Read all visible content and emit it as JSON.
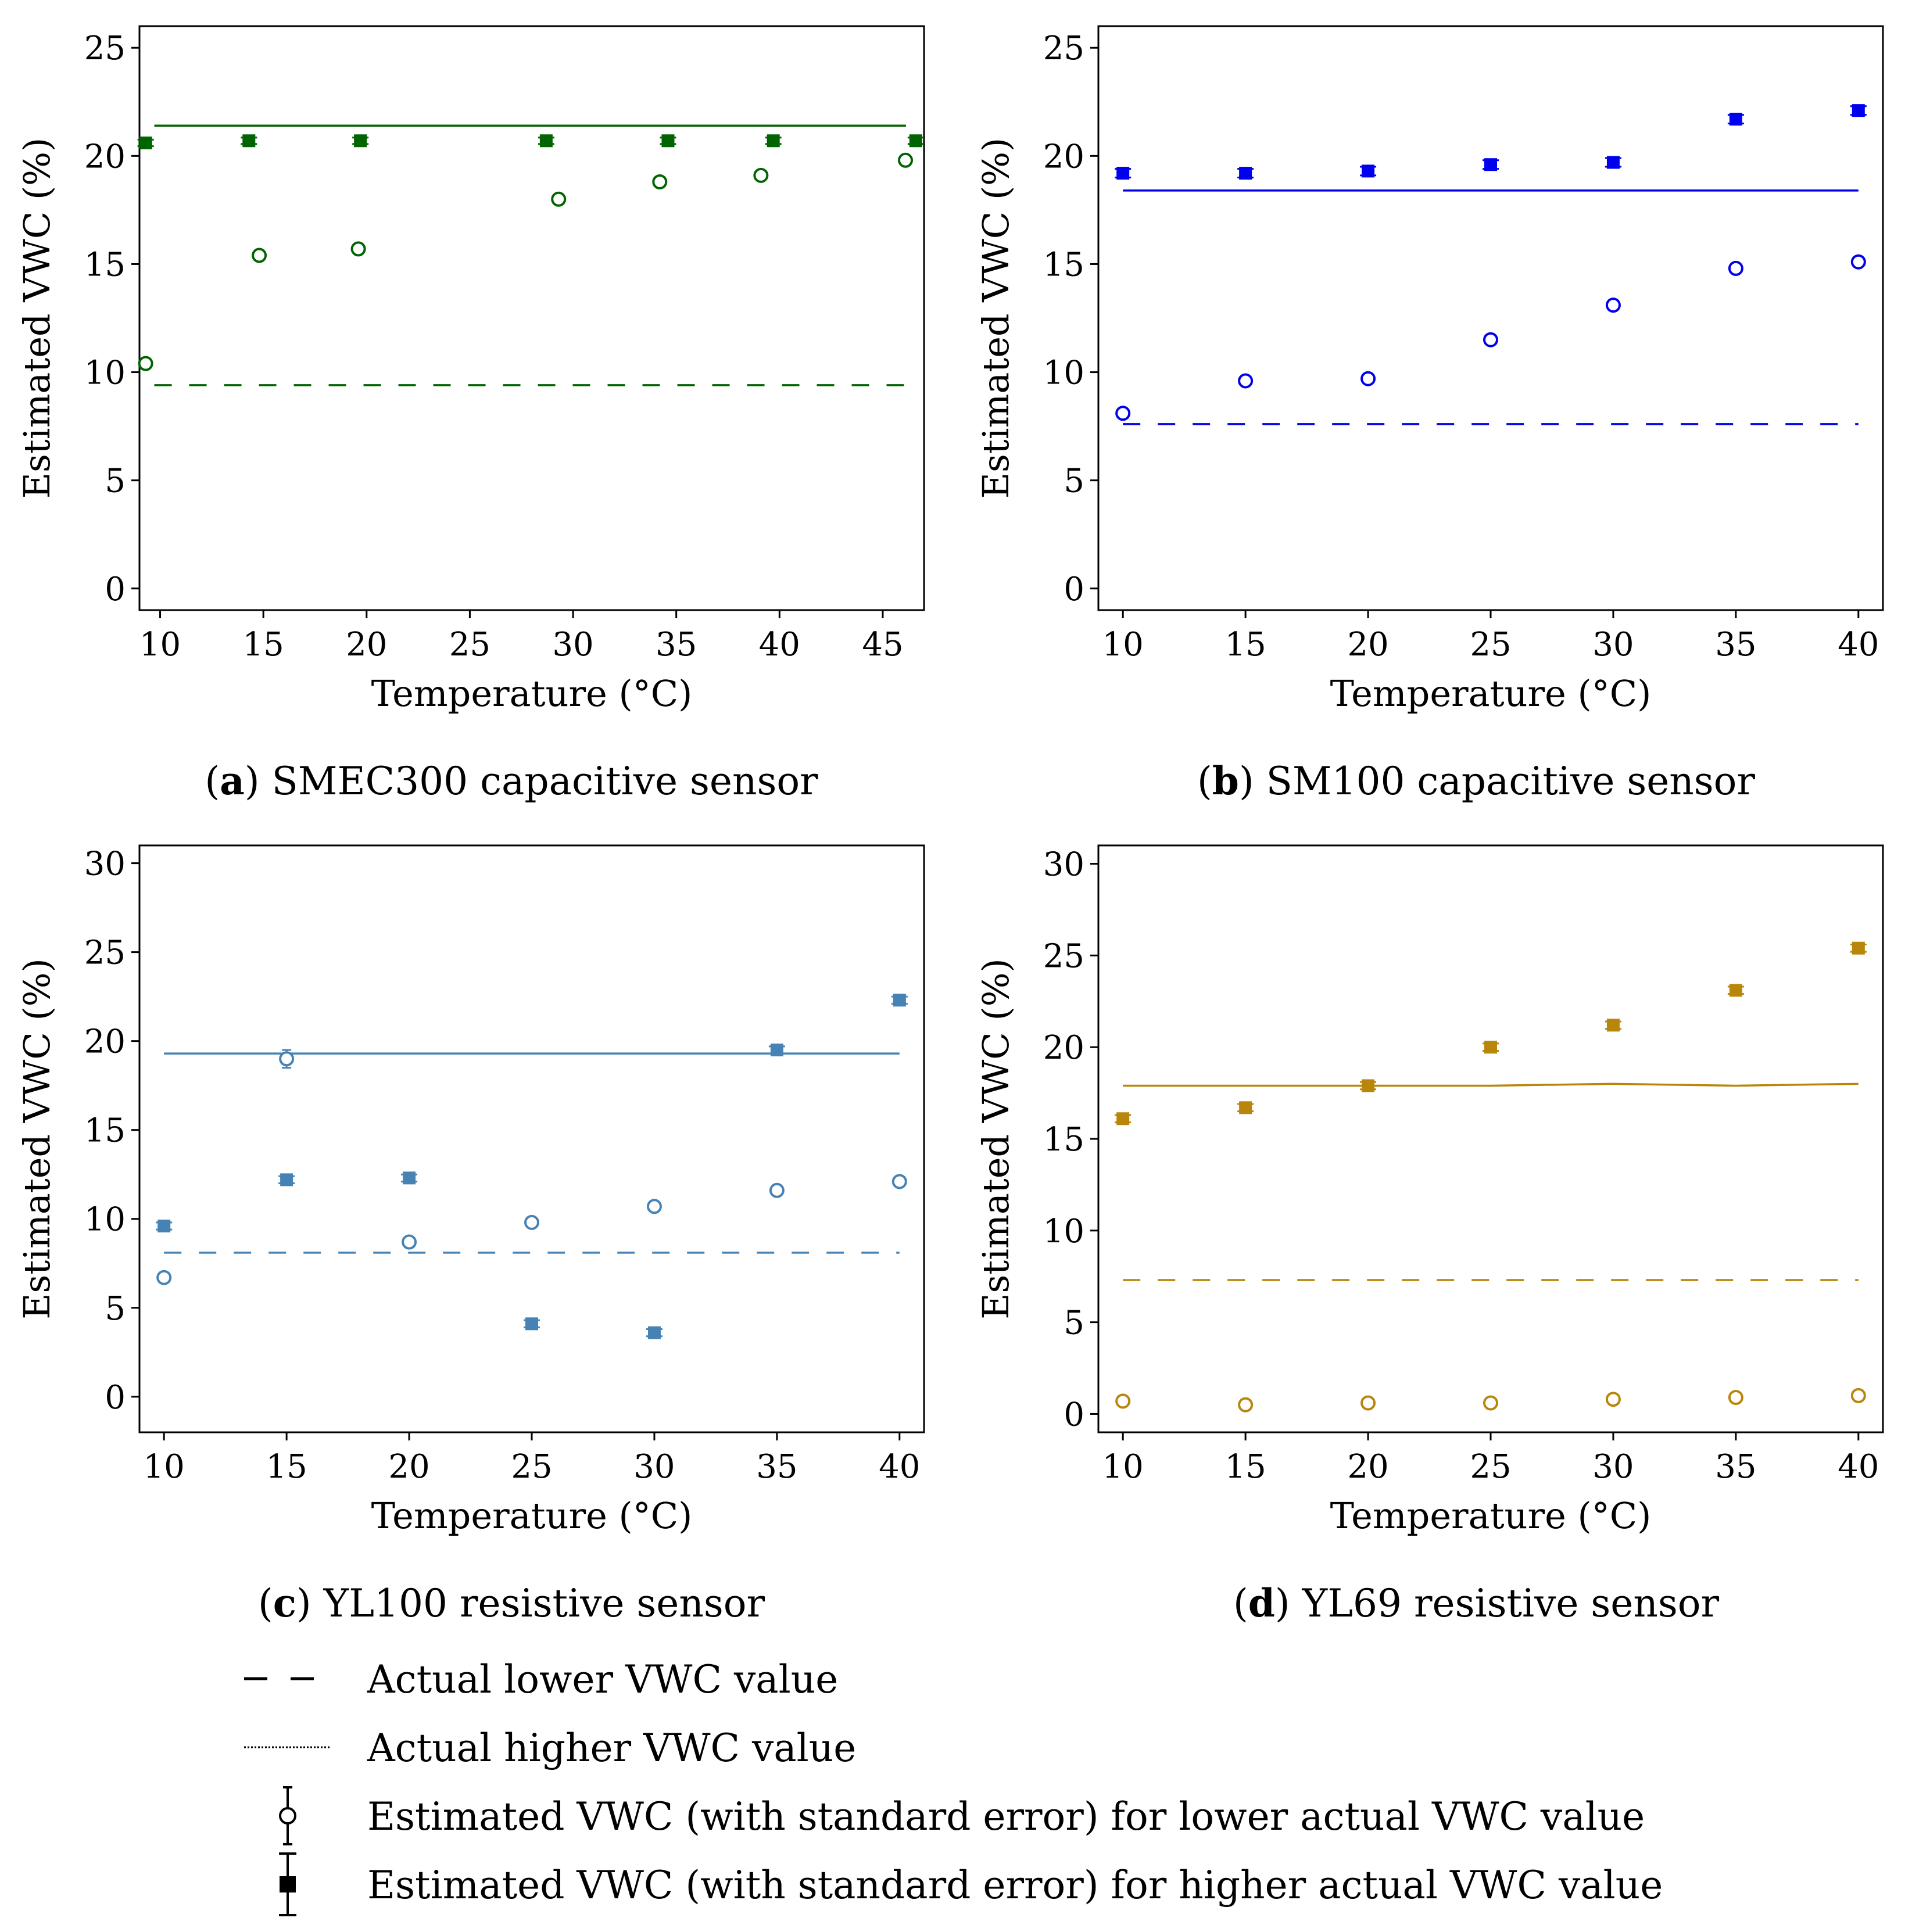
{
  "chart_data": [
    {
      "type": "scatter",
      "id": "a",
      "caption_letter": "a",
      "caption_text": "SMEC300 capacitive sensor",
      "color": "#006400",
      "xlabel": "Temperature (°C)",
      "ylabel": "Estimated VWC (%)",
      "xlim": [
        9,
        47
      ],
      "ylim": [
        -1,
        26
      ],
      "xticks": [
        10,
        15,
        20,
        25,
        30,
        35,
        40,
        45
      ],
      "yticks": [
        0,
        5,
        10,
        15,
        20,
        25
      ],
      "actual_lower": 9.4,
      "actual_higher": 21.4,
      "lower_series": {
        "name": "Estimated VWC for lower actual VWC value",
        "x": [
          9.3,
          14.8,
          19.6,
          29.3,
          34.2,
          39.1,
          46.1
        ],
        "y": [
          10.4,
          15.4,
          15.7,
          18.0,
          18.8,
          19.1,
          19.8
        ],
        "err": [
          0.1,
          0.1,
          0.2,
          0.2,
          0.15,
          0.1,
          0.1
        ]
      },
      "higher_series": {
        "name": "Estimated VWC for higher actual VWC value",
        "x": [
          9.3,
          14.3,
          19.7,
          28.7,
          34.6,
          39.7,
          46.6
        ],
        "y": [
          20.6,
          20.7,
          20.7,
          20.7,
          20.7,
          20.7,
          20.7
        ],
        "err": [
          0.15,
          0.15,
          0.15,
          0.15,
          0.15,
          0.15,
          0.15
        ]
      }
    },
    {
      "type": "scatter",
      "id": "b",
      "caption_letter": "b",
      "caption_text": "SM100 capacitive sensor",
      "color": "#0000ee",
      "xlabel": "Temperature (°C)",
      "ylabel": "Estimated VWC (%)",
      "xlim": [
        9,
        41
      ],
      "ylim": [
        -1,
        26
      ],
      "xticks": [
        10,
        15,
        20,
        25,
        30,
        35,
        40
      ],
      "yticks": [
        0,
        5,
        10,
        15,
        20,
        25
      ],
      "actual_lower": 7.6,
      "actual_higher": 18.4,
      "lower_series": {
        "name": "Estimated VWC for lower actual VWC value",
        "x": [
          10,
          15,
          20,
          25,
          30,
          35,
          40
        ],
        "y": [
          8.1,
          9.6,
          9.7,
          11.5,
          13.1,
          14.8,
          15.1
        ],
        "err": [
          0.1,
          0.1,
          0.2,
          0.2,
          0.15,
          0.1,
          0.2
        ]
      },
      "higher_series": {
        "name": "Estimated VWC for higher actual VWC value",
        "x": [
          10,
          15,
          20,
          25,
          30,
          35,
          40
        ],
        "y": [
          19.2,
          19.2,
          19.3,
          19.6,
          19.7,
          21.7,
          22.1
        ],
        "err": [
          0.2,
          0.2,
          0.2,
          0.2,
          0.2,
          0.2,
          0.2
        ]
      }
    },
    {
      "type": "scatter",
      "id": "c",
      "caption_letter": "c",
      "caption_text": "YL100 resistive sensor",
      "color": "#4682b4",
      "xlabel": "Temperature (°C)",
      "ylabel": "Estimated VWC (%)",
      "xlim": [
        9,
        41
      ],
      "ylim": [
        -2,
        31
      ],
      "xticks": [
        10,
        15,
        20,
        25,
        30,
        35,
        40
      ],
      "yticks": [
        0,
        5,
        10,
        15,
        20,
        25,
        30
      ],
      "actual_lower": 8.1,
      "actual_higher": 19.3,
      "lower_series": {
        "name": "Estimated VWC for lower actual VWC value",
        "x": [
          10,
          15,
          20,
          25,
          30,
          35,
          40
        ],
        "y": [
          6.7,
          19.0,
          8.7,
          9.8,
          10.7,
          11.6,
          12.1
        ],
        "err": [
          0.15,
          0.5,
          0.15,
          0.15,
          0.15,
          0.15,
          0.15
        ]
      },
      "higher_series": {
        "name": "Estimated VWC for higher actual VWC value",
        "x": [
          10,
          15,
          20,
          25,
          30,
          35,
          40
        ],
        "y": [
          9.6,
          12.2,
          12.3,
          4.1,
          3.6,
          19.5,
          22.3
        ],
        "err": [
          0.2,
          0.2,
          0.2,
          0.2,
          0.2,
          0.2,
          0.2
        ]
      }
    },
    {
      "type": "scatter",
      "id": "d",
      "caption_letter": "d",
      "caption_text": "YL69 resistive sensor",
      "color": "#b8860b",
      "xlabel": "Temperature (°C)",
      "ylabel": "Estimated VWC (%)",
      "xlim": [
        9,
        41
      ],
      "ylim": [
        -1,
        31
      ],
      "xticks": [
        10,
        15,
        20,
        25,
        30,
        35,
        40
      ],
      "yticks": [
        0,
        5,
        10,
        15,
        20,
        25,
        30
      ],
      "actual_lower": 7.3,
      "actual_higher": 17.9,
      "actual_higher_by_x": [
        [
          10,
          17.9
        ],
        [
          20,
          17.9
        ],
        [
          25,
          17.9
        ],
        [
          30,
          18.0
        ],
        [
          35,
          17.9
        ],
        [
          40,
          18.0
        ]
      ],
      "lower_series": {
        "name": "Estimated VWC for lower actual VWC value",
        "x": [
          10,
          15,
          20,
          25,
          30,
          35,
          40
        ],
        "y": [
          0.7,
          0.5,
          0.6,
          0.6,
          0.8,
          0.9,
          1.0
        ],
        "err": [
          0.1,
          0.1,
          0.1,
          0.1,
          0.1,
          0.1,
          0.1
        ]
      },
      "higher_series": {
        "name": "Estimated VWC for higher actual VWC value",
        "x": [
          10,
          15,
          20,
          25,
          30,
          35,
          40
        ],
        "y": [
          16.1,
          16.7,
          17.9,
          20.0,
          21.2,
          23.1,
          25.4
        ],
        "err": [
          0.2,
          0.2,
          0.2,
          0.2,
          0.2,
          0.2,
          0.2
        ]
      }
    }
  ],
  "legend": {
    "items": [
      {
        "symbol": "dashed-line",
        "label": "Actual lower VWC value"
      },
      {
        "symbol": "dotted-line",
        "label": "Actual higher VWC value"
      },
      {
        "symbol": "open-circle-errorbar",
        "label": "Estimated VWC (with standard error) for lower actual VWC value"
      },
      {
        "symbol": "filled-square-errorbar",
        "label": "Estimated VWC (with standard error) for higher actual VWC value"
      }
    ]
  }
}
